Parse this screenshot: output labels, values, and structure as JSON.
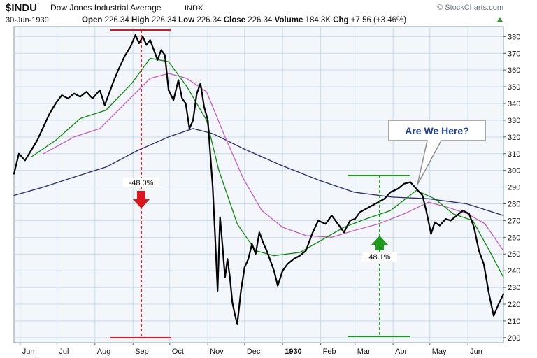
{
  "header": {
    "symbol": "$INDU",
    "name": "Dow Jones Industrial Average",
    "exchange": "INDX",
    "watermark": "© StockCharts.com",
    "date": "30-Jun-1930",
    "open_label": "Open",
    "open": "226.34",
    "high_label": "High",
    "high": "226.34",
    "low_label": "Low",
    "low": "226.34",
    "close_label": "Close",
    "close": "226.34",
    "volume_label": "Volume",
    "volume": "184.3K",
    "chg_label": "Chg",
    "chg": "+7.56 (+3.46%)"
  },
  "annotations": {
    "callout_text": "Are We Here?",
    "decline_label": "-48.0%",
    "rally_label": "48.1%"
  },
  "colors": {
    "background": "#ffffff",
    "plot_background": "#f3f7fb",
    "grid": "#c9dbe9",
    "price": "#000000",
    "ma_short": "#0a8a0a",
    "ma_mid": "#c25ec2",
    "ma_long": "#2a2a6e",
    "decline": "#d9151d",
    "rally": "#1c9a1c",
    "callout_text": "#1a3f9c",
    "callout_border": "#8f8f8f"
  },
  "chart_data": {
    "type": "line",
    "ylim": [
      197,
      386
    ],
    "y_ticks": [
      200,
      210,
      220,
      230,
      240,
      250,
      260,
      270,
      280,
      290,
      300,
      310,
      320,
      330,
      340,
      350,
      360,
      370,
      380
    ],
    "x_range": [
      "1929-05-27",
      "1930-06-30"
    ],
    "x_ticks": [
      {
        "label": "Jun",
        "date": "1929-06-01"
      },
      {
        "label": "Jul",
        "date": "1929-07-01"
      },
      {
        "label": "Aug",
        "date": "1929-08-01"
      },
      {
        "label": "Sep",
        "date": "1929-09-01"
      },
      {
        "label": "Oct",
        "date": "1929-10-01"
      },
      {
        "label": "Nov",
        "date": "1929-11-01"
      },
      {
        "label": "Dec",
        "date": "1929-12-01"
      },
      {
        "label": "1930",
        "date": "1930-01-01",
        "bold": true
      },
      {
        "label": "Feb",
        "date": "1930-02-01"
      },
      {
        "label": "Mar",
        "date": "1930-03-01"
      },
      {
        "label": "Apr",
        "date": "1930-04-01"
      },
      {
        "label": "May",
        "date": "1930-05-01"
      },
      {
        "label": "Jun",
        "date": "1930-06-01"
      }
    ],
    "series": [
      {
        "key": "price",
        "color": "#000000",
        "width": 2.2,
        "points": [
          [
            "1929-05-27",
            298
          ],
          [
            "1929-05-31",
            310
          ],
          [
            "1929-06-05",
            306
          ],
          [
            "1929-06-10",
            312
          ],
          [
            "1929-06-15",
            318
          ],
          [
            "1929-06-20",
            326
          ],
          [
            "1929-06-25",
            334
          ],
          [
            "1929-06-30",
            340
          ],
          [
            "1929-07-05",
            345
          ],
          [
            "1929-07-10",
            343
          ],
          [
            "1929-07-15",
            346
          ],
          [
            "1929-07-20",
            344
          ],
          [
            "1929-07-25",
            347
          ],
          [
            "1929-07-30",
            343
          ],
          [
            "1929-08-05",
            348
          ],
          [
            "1929-08-09",
            339
          ],
          [
            "1929-08-12",
            345
          ],
          [
            "1929-08-16",
            353
          ],
          [
            "1929-08-20",
            360
          ],
          [
            "1929-08-25",
            368
          ],
          [
            "1929-08-30",
            374
          ],
          [
            "1929-09-03",
            381
          ],
          [
            "1929-09-06",
            376
          ],
          [
            "1929-09-09",
            380
          ],
          [
            "1929-09-12",
            375
          ],
          [
            "1929-09-15",
            378
          ],
          [
            "1929-09-18",
            372
          ],
          [
            "1929-09-21",
            366
          ],
          [
            "1929-09-24",
            372
          ],
          [
            "1929-09-27",
            369
          ],
          [
            "1929-09-30",
            348
          ],
          [
            "1929-10-04",
            342
          ],
          [
            "1929-10-08",
            354
          ],
          [
            "1929-10-11",
            343
          ],
          [
            "1929-10-14",
            340
          ],
          [
            "1929-10-17",
            325
          ],
          [
            "1929-10-20",
            330
          ],
          [
            "1929-10-23",
            346
          ],
          [
            "1929-10-26",
            352
          ],
          [
            "1929-10-29",
            338
          ],
          [
            "1929-11-01",
            330
          ],
          [
            "1929-11-05",
            290
          ],
          [
            "1929-11-07",
            260
          ],
          [
            "1929-11-09",
            228
          ],
          [
            "1929-11-11",
            272
          ],
          [
            "1929-11-13",
            255
          ],
          [
            "1929-11-15",
            236
          ],
          [
            "1929-11-17",
            247
          ],
          [
            "1929-11-19",
            236
          ],
          [
            "1929-11-21",
            221
          ],
          [
            "1929-11-23",
            214
          ],
          [
            "1929-11-25",
            208
          ],
          [
            "1929-11-28",
            228
          ],
          [
            "1929-12-01",
            242
          ],
          [
            "1929-12-04",
            247
          ],
          [
            "1929-12-07",
            256
          ],
          [
            "1929-12-10",
            250
          ],
          [
            "1929-12-13",
            263
          ],
          [
            "1929-12-16",
            257
          ],
          [
            "1929-12-19",
            252
          ],
          [
            "1929-12-22",
            246
          ],
          [
            "1929-12-25",
            240
          ],
          [
            "1929-12-28",
            231
          ],
          [
            "1930-01-01",
            240
          ],
          [
            "1930-01-05",
            244
          ],
          [
            "1930-01-10",
            247
          ],
          [
            "1930-01-15",
            249
          ],
          [
            "1930-01-20",
            252
          ],
          [
            "1930-01-25",
            262
          ],
          [
            "1930-01-30",
            270
          ],
          [
            "1930-02-05",
            268
          ],
          [
            "1930-02-10",
            273
          ],
          [
            "1930-02-15",
            268
          ],
          [
            "1930-02-20",
            263
          ],
          [
            "1930-02-25",
            270
          ],
          [
            "1930-03-01",
            271
          ],
          [
            "1930-03-05",
            275
          ],
          [
            "1930-03-10",
            277
          ],
          [
            "1930-03-15",
            279
          ],
          [
            "1930-03-20",
            281
          ],
          [
            "1930-03-25",
            283
          ],
          [
            "1930-03-30",
            287
          ],
          [
            "1930-04-05",
            289
          ],
          [
            "1930-04-10",
            292
          ],
          [
            "1930-04-15",
            293
          ],
          [
            "1930-04-20",
            289
          ],
          [
            "1930-04-25",
            285
          ],
          [
            "1930-04-28",
            276
          ],
          [
            "1930-05-02",
            262
          ],
          [
            "1930-05-05",
            269
          ],
          [
            "1930-05-09",
            267
          ],
          [
            "1930-05-14",
            271
          ],
          [
            "1930-05-18",
            270
          ],
          [
            "1930-05-23",
            273
          ],
          [
            "1930-05-28",
            276
          ],
          [
            "1930-06-02",
            274
          ],
          [
            "1930-06-06",
            266
          ],
          [
            "1930-06-10",
            252
          ],
          [
            "1930-06-14",
            244
          ],
          [
            "1930-06-18",
            227
          ],
          [
            "1930-06-22",
            213
          ],
          [
            "1930-06-26",
            220
          ],
          [
            "1930-06-30",
            226
          ]
        ]
      },
      {
        "key": "ma_short",
        "color": "#0a8a0a",
        "width": 1.3,
        "points": [
          [
            "1929-06-10",
            308
          ],
          [
            "1929-06-30",
            318
          ],
          [
            "1929-07-20",
            331
          ],
          [
            "1929-08-10",
            336
          ],
          [
            "1929-08-31",
            352
          ],
          [
            "1929-09-15",
            367
          ],
          [
            "1929-09-30",
            365
          ],
          [
            "1929-10-15",
            350
          ],
          [
            "1929-10-31",
            330
          ],
          [
            "1929-11-10",
            300
          ],
          [
            "1929-11-25",
            268
          ],
          [
            "1929-12-10",
            252
          ],
          [
            "1929-12-25",
            249
          ],
          [
            "1930-01-15",
            251
          ],
          [
            "1930-02-01",
            258
          ],
          [
            "1930-02-20",
            266
          ],
          [
            "1930-03-10",
            271
          ],
          [
            "1930-03-30",
            276
          ],
          [
            "1930-04-20",
            288
          ],
          [
            "1930-05-05",
            283
          ],
          [
            "1930-05-20",
            274
          ],
          [
            "1930-06-05",
            270
          ],
          [
            "1930-06-20",
            250
          ],
          [
            "1930-06-30",
            236
          ]
        ]
      },
      {
        "key": "ma_mid",
        "color": "#c25ec2",
        "width": 1.3,
        "points": [
          [
            "1929-06-20",
            310
          ],
          [
            "1929-07-15",
            320
          ],
          [
            "1929-08-05",
            325
          ],
          [
            "1929-08-31",
            344
          ],
          [
            "1929-09-15",
            355
          ],
          [
            "1929-09-30",
            358
          ],
          [
            "1929-10-15",
            355
          ],
          [
            "1929-10-31",
            347
          ],
          [
            "1929-11-15",
            320
          ],
          [
            "1929-11-30",
            295
          ],
          [
            "1929-12-15",
            276
          ],
          [
            "1930-01-01",
            266
          ],
          [
            "1930-01-20",
            261
          ],
          [
            "1930-02-10",
            260
          ],
          [
            "1930-02-28",
            264
          ],
          [
            "1930-03-20",
            268
          ],
          [
            "1930-04-10",
            274
          ],
          [
            "1930-04-30",
            281
          ],
          [
            "1930-05-15",
            278
          ],
          [
            "1930-06-01",
            274
          ],
          [
            "1930-06-15",
            268
          ],
          [
            "1930-06-30",
            252
          ]
        ]
      },
      {
        "key": "ma_long",
        "color": "#2a2a6e",
        "width": 1.3,
        "points": [
          [
            "1929-05-27",
            285
          ],
          [
            "1929-06-20",
            290
          ],
          [
            "1929-07-15",
            296
          ],
          [
            "1929-08-10",
            302
          ],
          [
            "1929-09-05",
            312
          ],
          [
            "1929-09-30",
            320
          ],
          [
            "1929-10-20",
            325
          ],
          [
            "1929-11-05",
            322
          ],
          [
            "1929-11-30",
            313
          ],
          [
            "1929-12-31",
            303
          ],
          [
            "1930-01-31",
            294
          ],
          [
            "1930-02-28",
            287
          ],
          [
            "1930-03-31",
            284
          ],
          [
            "1930-04-30",
            283
          ],
          [
            "1930-05-31",
            280
          ],
          [
            "1930-06-30",
            273
          ]
        ]
      }
    ]
  }
}
